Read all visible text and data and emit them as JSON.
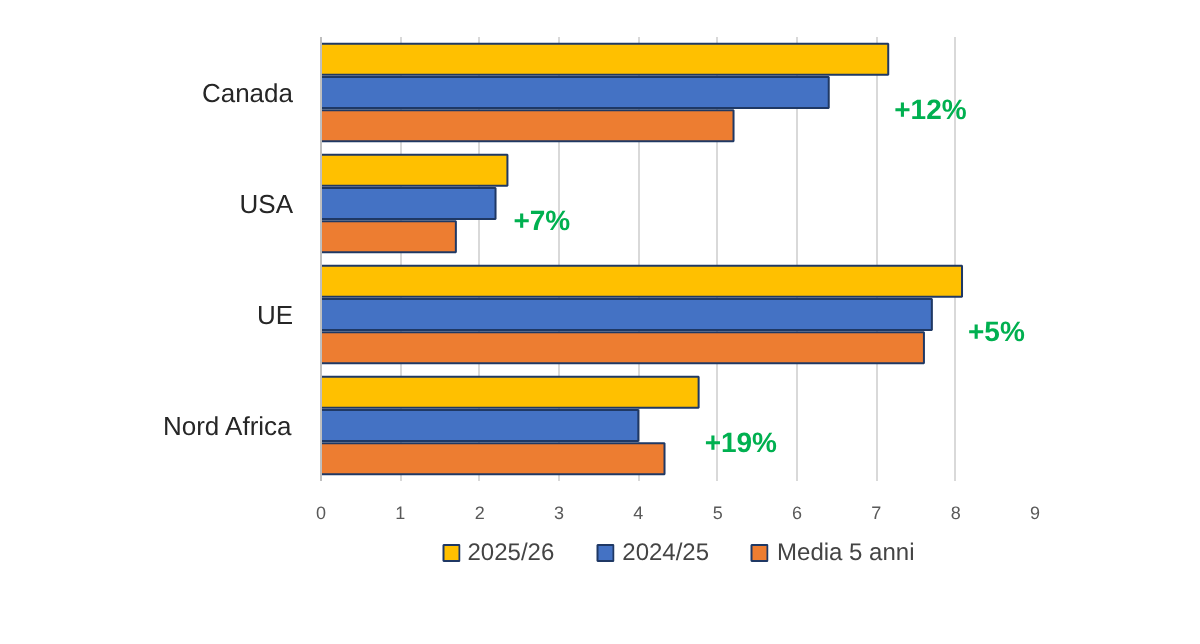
{
  "chart_data": {
    "type": "bar",
    "orientation": "horizontal",
    "categories": [
      "Canada",
      "USA",
      "UE",
      "Nord Africa"
    ],
    "series": [
      {
        "name": "2025/26",
        "color": "#ffc000",
        "values": [
          7.15,
          2.35,
          8.08,
          4.76
        ]
      },
      {
        "name": "2024/25",
        "color": "#4472c4",
        "values": [
          6.4,
          2.2,
          7.7,
          4.0
        ]
      },
      {
        "name": "Media 5 anni",
        "color": "#ed7d31",
        "values": [
          5.2,
          1.7,
          7.6,
          4.33
        ]
      }
    ],
    "xlim": [
      0,
      9
    ],
    "xticks": [
      0,
      1,
      2,
      3,
      4,
      5,
      6,
      7,
      8,
      9
    ],
    "grid": "x",
    "legend": "bottom",
    "annotations": [
      "+12%",
      "+7%",
      "+5%",
      "+19%"
    ]
  }
}
